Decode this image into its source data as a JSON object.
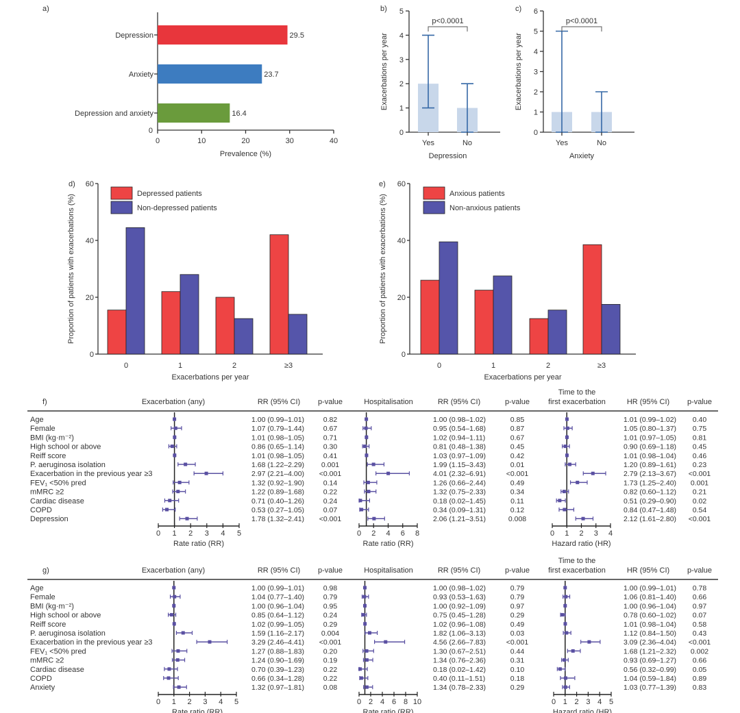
{
  "colors": {
    "depression": "#e8363c",
    "anxiety": "#3d7cc0",
    "both": "#6a9b3c",
    "bar_light": "#c8d7ea",
    "errbar": "#3568a6",
    "red": "#ee4444",
    "blue": "#5555aa",
    "forest": "#5a50a2"
  },
  "chart_data": [
    {
      "panel": "a)",
      "type": "bar",
      "orientation": "horizontal",
      "categories": [
        "Depression",
        "Anxiety",
        "Depression and anxiety"
      ],
      "values": [
        29.5,
        23.7,
        16.4
      ],
      "value_labels": [
        "29.5",
        "23.7",
        "16.4"
      ],
      "xlabel": "Prevalence (%)",
      "xlim": [
        0,
        40
      ],
      "xticks": [
        "0",
        "10",
        "20",
        "30",
        "40"
      ],
      "yzero": "0"
    },
    {
      "panel": "b)",
      "type": "bar",
      "categories": [
        "Yes",
        "No"
      ],
      "values": [
        2,
        1
      ],
      "ranges": [
        [
          1,
          4
        ],
        [
          0,
          2
        ]
      ],
      "xlabel": "Depression",
      "ylabel": "Exacerbations per year",
      "ylim": [
        0,
        5
      ],
      "yticks": [
        "0",
        "1",
        "2",
        "3",
        "4",
        "5"
      ],
      "annotation": "p<0.0001"
    },
    {
      "panel": "c)",
      "type": "bar",
      "categories": [
        "Yes",
        "No"
      ],
      "values": [
        1,
        1
      ],
      "ranges": [
        [
          0,
          5
        ],
        [
          0,
          2
        ]
      ],
      "xlabel": "Anxiety",
      "ylabel": "Exacerbations per year",
      "ylim": [
        0,
        6
      ],
      "yticks": [
        "0",
        "1",
        "2",
        "3",
        "4",
        "5",
        "6"
      ],
      "annotation": "p<0.0001"
    },
    {
      "panel": "d)",
      "type": "bar",
      "categories": [
        "0",
        "1",
        "2",
        "≥3"
      ],
      "series": [
        {
          "name": "Depressed patients",
          "values": [
            15.5,
            22,
            20,
            42
          ]
        },
        {
          "name": "Non-depressed patients",
          "values": [
            44.5,
            28,
            12.5,
            14
          ]
        }
      ],
      "xlabel": "Exacerbations per year",
      "ylabel": "Proportion of patients with exacerbations (%)",
      "ylim": [
        0,
        60
      ],
      "yticks": [
        "0",
        "20",
        "40",
        "60"
      ],
      "legend": "top-left"
    },
    {
      "panel": "e)",
      "type": "bar",
      "categories": [
        "0",
        "1",
        "2",
        "≥3"
      ],
      "series": [
        {
          "name": "Anxious patients",
          "values": [
            26,
            22.5,
            12.5,
            38.5
          ]
        },
        {
          "name": "Non-anxious patients",
          "values": [
            39.5,
            27.5,
            15.5,
            17.5
          ]
        }
      ],
      "xlabel": "Exacerbations per year",
      "ylabel": "Proportion of patients with exacerbations (%)",
      "ylim": [
        0,
        60
      ],
      "yticks": [
        "0",
        "20",
        "40",
        "60"
      ],
      "legend": "top-left"
    },
    {
      "panel": "f)",
      "type": "forest",
      "rows": [
        "Age",
        "Female",
        "BMI (kg·m⁻²)",
        "High school or above",
        "Reiff score",
        "P. aeruginosa isolation",
        "Exacerbation in the previous year ≥3",
        "FEV₁ <50% pred",
        "mMRC ≥2",
        "Cardiac disease",
        "COPD",
        "Depression"
      ],
      "models": [
        {
          "title": [
            "Exacerbation (any)"
          ],
          "est_header": "RR (95% CI)",
          "p_header": "p-value",
          "axis_label": "Rate ratio (RR)",
          "xlim": [
            0,
            5
          ],
          "xticks": [
            "0",
            "1",
            "2",
            "3",
            "4",
            "5"
          ],
          "ci": [
            "1.00 (0.99–1.01)",
            "1.07 (0.79–1.44)",
            "1.01 (0.98–1.05)",
            "0.86 (0.65–1.14)",
            "1.01 (0.98–1.05)",
            "1.68 (1.22–2.29)",
            "2.97 (2.21–4.00)",
            "1.32 (0.92–1.90)",
            "1.22 (0.89–1.68)",
            "0.71 (0.40–1.26)",
            "0.53 (0.27–1.05)",
            "1.78 (1.32–2.41)"
          ],
          "p": [
            "0.82",
            "0.67",
            "0.71",
            "0.30",
            "0.41",
            "0.001",
            "<0.001",
            "0.14",
            "0.22",
            "0.24",
            "0.07",
            "<0.001"
          ]
        },
        {
          "title": [
            "Hospitalisation"
          ],
          "est_header": "RR (95% CI)",
          "p_header": "p-value",
          "axis_label": "Rate ratio (RR)",
          "xlim": [
            0,
            8
          ],
          "xticks": [
            "0",
            "2",
            "4",
            "6",
            "8"
          ],
          "ci": [
            "1.00 (0.98–1.02)",
            "0.95 (0.54–1.68)",
            "1.02 (0.94–1.11)",
            "0.81 (0.48–1.38)",
            "1.03 (0.97–1.09)",
            "1.99 (1.15–3.43)",
            "4.01 (2.32–6.91)",
            "1.26 (0.66–2.44)",
            "1.32 (0.75–2.33)",
            "0.18 (0.02–1.45)",
            "0.34 (0.09–1.31)",
            "2.06 (1.21–3.51)"
          ],
          "p": [
            "0.85",
            "0.87",
            "0.67",
            "0.45",
            "0.42",
            "0.01",
            "<0.001",
            "0.49",
            "0.34",
            "0.11",
            "0.12",
            "0.008"
          ]
        },
        {
          "title": [
            "Time to the",
            "first exacerbation"
          ],
          "est_header": "HR (95% CI)",
          "p_header": "p-value",
          "axis_label": "Hazard ratio (HR)",
          "xlim": [
            0,
            4
          ],
          "xticks": [
            "0",
            "1",
            "2",
            "3",
            "4"
          ],
          "ci": [
            "1.01 (0.99–1.02)",
            "1.05 (0.80–1.37)",
            "1.01 (0.97–1.05)",
            "0.90 (0.69–1.18)",
            "1.01 (0.98–1.04)",
            "1.20 (0.89–1.61)",
            "2.79 (2.13–3.67)",
            "1.73 (1.25–2.40)",
            "0.82 (0.60–1.12)",
            "0.51 (0.29–0.90)",
            "0.84 (0.47–1.48)",
            "2.12 (1.61–2.80)"
          ],
          "p": [
            "0.40",
            "0.75",
            "0.81",
            "0.45",
            "0.46",
            "0.23",
            "<0.001",
            "0.001",
            "0.21",
            "0.02",
            "0.54",
            "<0.001"
          ]
        }
      ]
    },
    {
      "panel": "g)",
      "type": "forest",
      "rows": [
        "Age",
        "Female",
        "BMI (kg·m⁻²)",
        "High school or above",
        "Reiff score",
        "P. aeruginosa isolation",
        "Exacerbation in the previous year ≥3",
        "FEV₁ <50% pred",
        "mMRC ≥2",
        "Cardiac disease",
        "COPD",
        "Anxiety"
      ],
      "models": [
        {
          "title": [
            "Exacerbation (any)"
          ],
          "est_header": "RR (95% CI)",
          "p_header": "p-value",
          "axis_label": "Rate ratio (RR)",
          "xlim": [
            0,
            5
          ],
          "xticks": [
            "0",
            "1",
            "2",
            "3",
            "4",
            "5"
          ],
          "ci": [
            "1.00 (0.99–1.01)",
            "1.04 (0.77–1.40)",
            "1.00 (0.96–1.04)",
            "0.85 (0.64–1.12)",
            "1.02 (0.99–1.05)",
            "1.59 (1.16–2.17)",
            "3.29 (2.46–4.41)",
            "1.27 (0.88–1.83)",
            "1.24 (0.90–1.69)",
            "0.70 (0.39–1.23)",
            "0.66 (0.34–1.28)",
            "1.32 (0.97–1.81)"
          ],
          "p": [
            "0.98",
            "0.79",
            "0.95",
            "0.24",
            "0.29",
            "0.004",
            "<0.001",
            "0.20",
            "0.19",
            "0.22",
            "0.22",
            "0.08"
          ]
        },
        {
          "title": [
            "Hospitalisation"
          ],
          "est_header": "RR (95% CI)",
          "p_header": "p-value",
          "axis_label": "Rate ratio (RR)",
          "xlim": [
            0,
            10
          ],
          "xticks": [
            "0",
            "2",
            "4",
            "6",
            "8",
            "10"
          ],
          "ci": [
            "1.00 (0.98–1.02)",
            "0.93 (0.53–1.63)",
            "1.00 (0.92–1.09)",
            "0.75 (0.45–1.28)",
            "1.02 (0.96–1.08)",
            "1.82 (1.06–3.13)",
            "4.56 (2.66–7.83)",
            "1.30 (0.67–2.51)",
            "1.34 (0.76–2.36)",
            "0.18 (0.02–1.42)",
            "0.40 (0.11–1.51)",
            "1.34 (0.78–2.33)"
          ],
          "p": [
            "0.79",
            "0.79",
            "0.97",
            "0.29",
            "0.49",
            "0.03",
            "<0.001",
            "0.44",
            "0.31",
            "0.10",
            "0.18",
            "0.29"
          ]
        },
        {
          "title": [
            "Time to the",
            "first exacerbation"
          ],
          "est_header": "HR (95% CI)",
          "p_header": "p-value",
          "axis_label": "Hazard ratio (HR)",
          "xlim": [
            0,
            5
          ],
          "xticks": [
            "0",
            "1",
            "2",
            "3",
            "4",
            "5"
          ],
          "ci": [
            "1.00 (0.99–1.01)",
            "1.06 (0.81–1.40)",
            "1.00 (0.96–1.04)",
            "0.78 (0.60–1.02)",
            "1.01 (0.98–1.04)",
            "1.12 (0.84–1.50)",
            "3.09 (2.36–4.04)",
            "1.68 (1.21–2.32)",
            "0.93 (0.69–1.27)",
            "0.56 (0.32–0.99)",
            "1.04 (0.59–1.84)",
            "1.03 (0.77–1.39)"
          ],
          "p": [
            "0.78",
            "0.66",
            "0.97",
            "0.07",
            "0.58",
            "0.43",
            "<0.001",
            "0.002",
            "0.66",
            "0.05",
            "0.89",
            "0.83"
          ]
        }
      ]
    }
  ]
}
